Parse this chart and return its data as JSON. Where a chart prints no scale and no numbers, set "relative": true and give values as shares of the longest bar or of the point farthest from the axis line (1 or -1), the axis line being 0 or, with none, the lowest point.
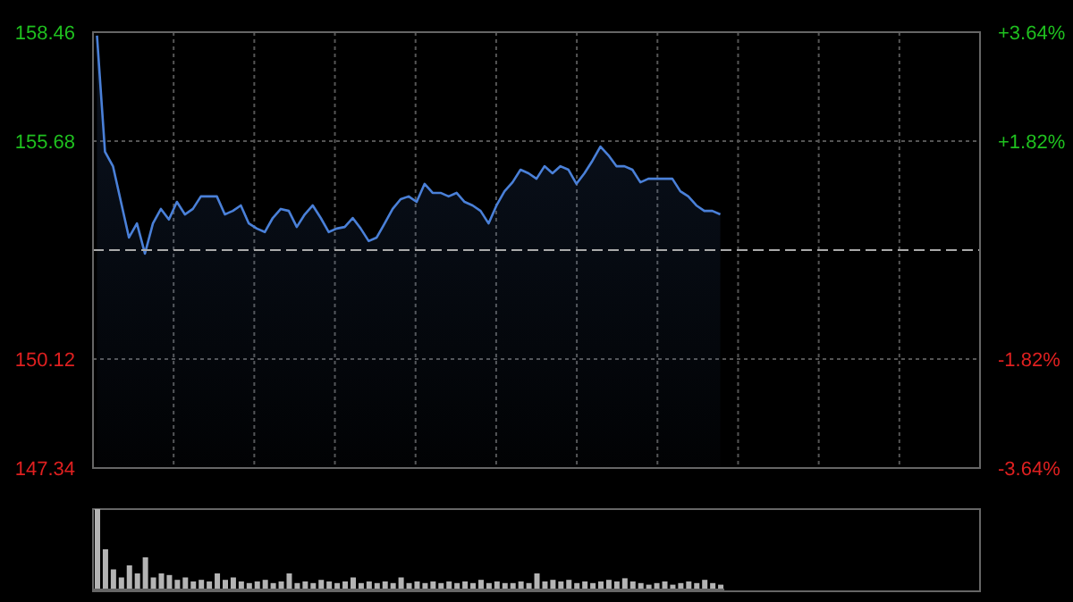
{
  "chart_data": [
    {
      "type": "area",
      "categories": [
        null,
        null,
        null,
        null,
        null,
        null,
        null,
        null,
        null,
        null,
        null,
        null,
        null,
        null,
        null,
        null,
        null,
        null,
        null,
        null,
        null,
        null,
        null,
        null,
        null,
        null,
        null,
        null,
        null,
        null,
        null,
        null,
        null,
        null,
        null,
        null,
        null,
        null,
        null,
        null,
        null,
        null,
        null,
        null,
        null,
        null,
        null,
        null,
        null,
        null,
        null,
        null,
        null,
        null,
        null,
        null,
        null,
        null,
        null,
        null,
        null,
        null,
        null,
        null,
        null,
        null,
        null,
        null,
        null,
        null,
        null,
        null,
        null,
        null,
        null,
        null,
        null,
        null,
        null
      ],
      "values": [
        158.37,
        155.41,
        155.04,
        154.13,
        153.22,
        153.58,
        152.81,
        153.58,
        153.95,
        153.68,
        154.13,
        153.81,
        153.95,
        154.27,
        154.27,
        154.27,
        153.81,
        153.9,
        154.04,
        153.58,
        153.45,
        153.36,
        153.72,
        153.95,
        153.9,
        153.49,
        153.81,
        154.04,
        153.72,
        153.36,
        153.45,
        153.49,
        153.72,
        153.45,
        153.13,
        153.22,
        153.58,
        153.95,
        154.2,
        154.27,
        154.13,
        154.59,
        154.36,
        154.36,
        154.27,
        154.36,
        154.13,
        154.04,
        153.9,
        153.58,
        154.04,
        154.4,
        154.63,
        154.95,
        154.86,
        154.72,
        155.04,
        154.86,
        155.04,
        154.95,
        154.59,
        154.86,
        155.18,
        155.54,
        155.32,
        155.04,
        155.04,
        154.95,
        154.63,
        154.72,
        154.72,
        154.72,
        154.72,
        154.4,
        154.27,
        154.04,
        153.9,
        153.9,
        153.81
      ],
      "color": "#4a80d8",
      "ylim": [
        147.34,
        158.46
      ],
      "yticks": [
        158.46,
        155.68,
        150.12,
        147.34
      ],
      "y2lim": [
        -3.64,
        3.64
      ],
      "y2ticks": [
        {
          "value": 3.64,
          "label": "+3.64%"
        },
        {
          "value": 1.82,
          "label": "+1.82%"
        },
        {
          "value": -1.82,
          "label": "-1.82%"
        },
        {
          "value": -3.64,
          "label": "-3.64%"
        }
      ],
      "ref_lines": [
        {
          "axis": "y",
          "value": 152.9,
          "line_style": "dashed"
        }
      ],
      "grid": true
    },
    {
      "type": "bar",
      "categories": [
        null,
        null,
        null,
        null,
        null,
        null,
        null,
        null,
        null,
        null,
        null,
        null,
        null,
        null,
        null,
        null,
        null,
        null,
        null,
        null,
        null,
        null,
        null,
        null,
        null,
        null,
        null,
        null,
        null,
        null,
        null,
        null,
        null,
        null,
        null,
        null,
        null,
        null,
        null,
        null,
        null,
        null,
        null,
        null,
        null,
        null,
        null,
        null,
        null,
        null,
        null,
        null,
        null,
        null,
        null,
        null,
        null,
        null,
        null,
        null,
        null,
        null,
        null,
        null,
        null,
        null,
        null,
        null,
        null,
        null,
        null,
        null,
        null,
        null,
        null,
        null,
        null,
        null,
        null
      ],
      "values": [
        1,
        0.5,
        0.25,
        0.15,
        0.3,
        0.2,
        0.4,
        0.15,
        0.2,
        0.18,
        0.12,
        0.15,
        0.1,
        0.12,
        0.1,
        0.2,
        0.12,
        0.15,
        0.1,
        0.08,
        0.1,
        0.12,
        0.08,
        0.1,
        0.2,
        0.08,
        0.1,
        0.08,
        0.12,
        0.1,
        0.08,
        0.1,
        0.15,
        0.08,
        0.1,
        0.08,
        0.1,
        0.08,
        0.15,
        0.08,
        0.1,
        0.08,
        0.1,
        0.08,
        0.1,
        0.08,
        0.1,
        0.08,
        0.12,
        0.08,
        0.1,
        0.08,
        0.08,
        0.1,
        0.08,
        0.2,
        0.1,
        0.12,
        0.1,
        0.12,
        0.08,
        0.1,
        0.08,
        0.1,
        0.12,
        0.1,
        0.14,
        0.1,
        0.08,
        0.06,
        0.08,
        0.1,
        0.06,
        0.08,
        0.1,
        0.08,
        0.12,
        0.08,
        0.06
      ],
      "color": "#b4b4b4",
      "relative": true
    }
  ]
}
